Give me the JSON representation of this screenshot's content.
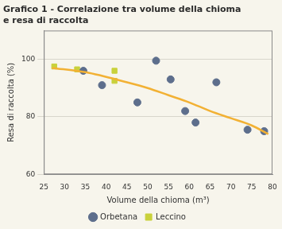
{
  "chart_data": {
    "type": "scatter",
    "title": [
      "Grafico 1 - Correlazione tra volume della chioma",
      "e resa di raccolta"
    ],
    "x_label": "Volume della chioma (m³)",
    "y_label": "Resa di raccolta (%)",
    "series": [
      {
        "name": "Orbetana",
        "color": "#5d6e8c",
        "marker": "circle",
        "x": [
          34.5,
          39,
          47.5,
          52,
          55.5,
          59,
          61.5,
          66.5,
          74,
          78
        ],
        "values": [
          96,
          91,
          85,
          99.5,
          93,
          82,
          78,
          92,
          75.5,
          75
        ]
      },
      {
        "name": "Leccino",
        "color": "#c9d13b",
        "marker": "square",
        "x": [
          27.5,
          33,
          42,
          42
        ],
        "values": [
          97.5,
          96.5,
          96,
          92.5
        ]
      }
    ],
    "trend": {
      "type": "line",
      "color": "#f2b134",
      "line_style": "solid",
      "x": [
        27,
        35,
        45,
        50,
        55,
        60,
        65,
        70,
        75,
        79
      ],
      "values": [
        97,
        95.5,
        92,
        90,
        87.5,
        85,
        82,
        79.5,
        77,
        74
      ]
    },
    "xlim": [
      25,
      80
    ],
    "xticks": [
      25,
      30,
      35,
      40,
      45,
      50,
      55,
      60,
      65,
      70,
      75,
      80
    ],
    "ylim": [
      60,
      110
    ],
    "yticks": [
      60,
      80,
      100
    ],
    "grid": true,
    "legend": "bottom"
  }
}
